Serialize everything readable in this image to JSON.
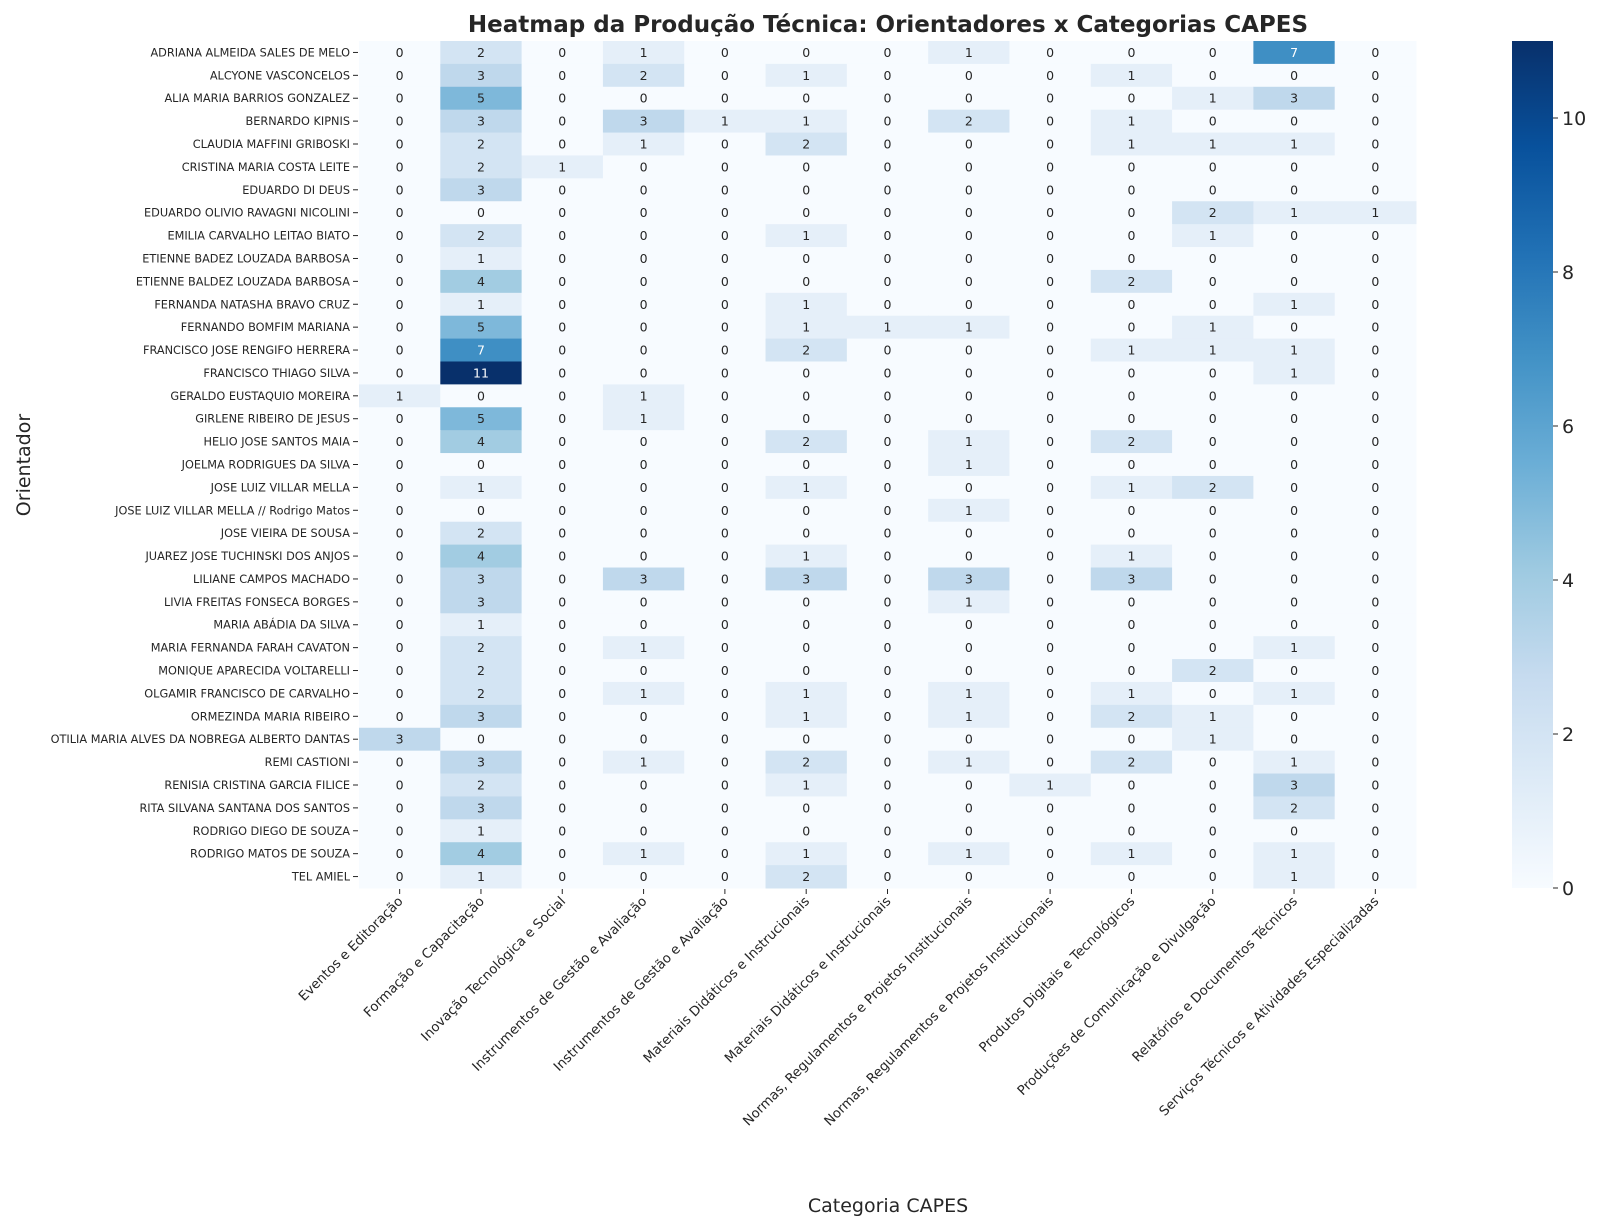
{
  "chart_data": {
    "type": "heatmap",
    "title": "Heatmap da Produção Técnica: Orientadores x Categorias CAPES",
    "xlabel": "Categoria CAPES",
    "ylabel": "Orientador",
    "colormap": "Blues",
    "colorbar": {
      "range": [
        0,
        11
      ],
      "ticks": [
        0,
        2,
        4,
        6,
        8,
        10
      ],
      "placement": "right"
    },
    "annotated": true,
    "grid": false,
    "columns": [
      "Eventos e Editoração",
      "Formação e Capacitação",
      "Inovação Tecnológica e Social",
      "Instrumentos de Gestão e Avaliação",
      "Instrumentos de Gestão e Avaliação",
      "Materiais Didáticos e Instrucionais",
      "Materiais Didáticos e Instrucionais",
      "Normas, Regulamentos e Projetos Institucionais",
      "Normas, Regulamentos e Projetos Institucionais",
      "Produtos Digitais e Tecnológicos",
      "Produções de Comunicação e Divulgação",
      "Relatórios e Documentos Técnicos",
      "Serviços Técnicos e Atividades Especializadas"
    ],
    "rows": [
      "ADRIANA ALMEIDA SALES DE MELO",
      "ALCYONE VASCONCELOS",
      "ALIA MARIA BARRIOS GONZALEZ",
      "BERNARDO KIPNIS",
      "CLAUDIA MAFFINI GRIBOSKI",
      "CRISTINA MARIA COSTA LEITE",
      "EDUARDO DI DEUS",
      "EDUARDO OLIVIO RAVAGNI NICOLINI",
      "EMILIA CARVALHO LEITAO BIATO",
      "ETIENNE BADEZ LOUZADA BARBOSA",
      "ETIENNE BALDEZ LOUZADA BARBOSA",
      "FERNANDA NATASHA BRAVO CRUZ",
      "FERNANDO BOMFIM MARIANA",
      "FRANCISCO JOSE RENGIFO HERRERA",
      "FRANCISCO THIAGO SILVA",
      "GERALDO EUSTAQUIO MOREIRA",
      "GIRLENE RIBEIRO DE JESUS",
      "HELIO JOSE SANTOS MAIA",
      "JOELMA RODRIGUES DA SILVA",
      "JOSE LUIZ VILLAR MELLA",
      "JOSE LUIZ VILLAR MELLA // Rodrigo Matos",
      "JOSE VIEIRA DE SOUSA",
      "JUAREZ JOSE TUCHINSKI DOS ANJOS",
      "LILIANE CAMPOS MACHADO",
      "LIVIA FREITAS FONSECA BORGES",
      "MARIA ABÁDIA DA SILVA",
      "MARIA FERNANDA FARAH CAVATON",
      "MONIQUE APARECIDA VOLTARELLI",
      "OLGAMIR FRANCISCO DE CARVALHO",
      "ORMEZINDA MARIA RIBEIRO",
      "OTILIA MARIA ALVES DA NOBREGA ALBERTO DANTAS",
      "REMI CASTIONI",
      "RENISIA CRISTINA GARCIA FILICE",
      "RITA SILVANA SANTANA DOS SANTOS",
      "RODRIGO DIEGO DE SOUZA",
      "RODRIGO MATOS DE SOUZA",
      "TEL AMIEL"
    ],
    "values": [
      [
        0,
        2,
        0,
        1,
        0,
        0,
        0,
        1,
        0,
        0,
        0,
        7,
        0
      ],
      [
        0,
        3,
        0,
        2,
        0,
        1,
        0,
        0,
        0,
        1,
        0,
        0,
        0
      ],
      [
        0,
        5,
        0,
        0,
        0,
        0,
        0,
        0,
        0,
        0,
        1,
        3,
        0
      ],
      [
        0,
        3,
        0,
        3,
        1,
        1,
        0,
        2,
        0,
        1,
        0,
        0,
        0
      ],
      [
        0,
        2,
        0,
        1,
        0,
        2,
        0,
        0,
        0,
        1,
        1,
        1,
        0
      ],
      [
        0,
        2,
        1,
        0,
        0,
        0,
        0,
        0,
        0,
        0,
        0,
        0,
        0
      ],
      [
        0,
        3,
        0,
        0,
        0,
        0,
        0,
        0,
        0,
        0,
        0,
        0,
        0
      ],
      [
        0,
        0,
        0,
        0,
        0,
        0,
        0,
        0,
        0,
        0,
        2,
        1,
        1
      ],
      [
        0,
        2,
        0,
        0,
        0,
        1,
        0,
        0,
        0,
        0,
        1,
        0,
        0
      ],
      [
        0,
        1,
        0,
        0,
        0,
        0,
        0,
        0,
        0,
        0,
        0,
        0,
        0
      ],
      [
        0,
        4,
        0,
        0,
        0,
        0,
        0,
        0,
        0,
        2,
        0,
        0,
        0
      ],
      [
        0,
        1,
        0,
        0,
        0,
        1,
        0,
        0,
        0,
        0,
        0,
        1,
        0
      ],
      [
        0,
        5,
        0,
        0,
        0,
        1,
        1,
        1,
        0,
        0,
        1,
        0,
        0
      ],
      [
        0,
        7,
        0,
        0,
        0,
        2,
        0,
        0,
        0,
        1,
        1,
        1,
        0
      ],
      [
        0,
        11,
        0,
        0,
        0,
        0,
        0,
        0,
        0,
        0,
        0,
        1,
        0
      ],
      [
        1,
        0,
        0,
        1,
        0,
        0,
        0,
        0,
        0,
        0,
        0,
        0,
        0
      ],
      [
        0,
        5,
        0,
        1,
        0,
        0,
        0,
        0,
        0,
        0,
        0,
        0,
        0
      ],
      [
        0,
        4,
        0,
        0,
        0,
        2,
        0,
        1,
        0,
        2,
        0,
        0,
        0
      ],
      [
        0,
        0,
        0,
        0,
        0,
        0,
        0,
        1,
        0,
        0,
        0,
        0,
        0
      ],
      [
        0,
        1,
        0,
        0,
        0,
        1,
        0,
        0,
        0,
        1,
        2,
        0,
        0
      ],
      [
        0,
        0,
        0,
        0,
        0,
        0,
        0,
        1,
        0,
        0,
        0,
        0,
        0
      ],
      [
        0,
        2,
        0,
        0,
        0,
        0,
        0,
        0,
        0,
        0,
        0,
        0,
        0
      ],
      [
        0,
        4,
        0,
        0,
        0,
        1,
        0,
        0,
        0,
        1,
        0,
        0,
        0
      ],
      [
        0,
        3,
        0,
        3,
        0,
        3,
        0,
        3,
        0,
        3,
        0,
        0,
        0
      ],
      [
        0,
        3,
        0,
        0,
        0,
        0,
        0,
        1,
        0,
        0,
        0,
        0,
        0
      ],
      [
        0,
        1,
        0,
        0,
        0,
        0,
        0,
        0,
        0,
        0,
        0,
        0,
        0
      ],
      [
        0,
        2,
        0,
        1,
        0,
        0,
        0,
        0,
        0,
        0,
        0,
        1,
        0
      ],
      [
        0,
        2,
        0,
        0,
        0,
        0,
        0,
        0,
        0,
        0,
        2,
        0,
        0
      ],
      [
        0,
        2,
        0,
        1,
        0,
        1,
        0,
        1,
        0,
        1,
        0,
        1,
        0
      ],
      [
        0,
        3,
        0,
        0,
        0,
        1,
        0,
        1,
        0,
        2,
        1,
        0,
        0
      ],
      [
        3,
        0,
        0,
        0,
        0,
        0,
        0,
        0,
        0,
        0,
        1,
        0,
        0
      ],
      [
        0,
        3,
        0,
        1,
        0,
        2,
        0,
        1,
        0,
        2,
        0,
        1,
        0
      ],
      [
        0,
        2,
        0,
        0,
        0,
        1,
        0,
        0,
        1,
        0,
        0,
        3,
        0
      ],
      [
        0,
        3,
        0,
        0,
        0,
        0,
        0,
        0,
        0,
        0,
        0,
        2,
        0
      ],
      [
        0,
        1,
        0,
        0,
        0,
        0,
        0,
        0,
        0,
        0,
        0,
        0,
        0
      ],
      [
        0,
        4,
        0,
        1,
        0,
        1,
        0,
        1,
        0,
        1,
        0,
        1,
        0
      ],
      [
        0,
        1,
        0,
        0,
        0,
        2,
        0,
        0,
        0,
        0,
        0,
        1,
        0
      ]
    ]
  }
}
